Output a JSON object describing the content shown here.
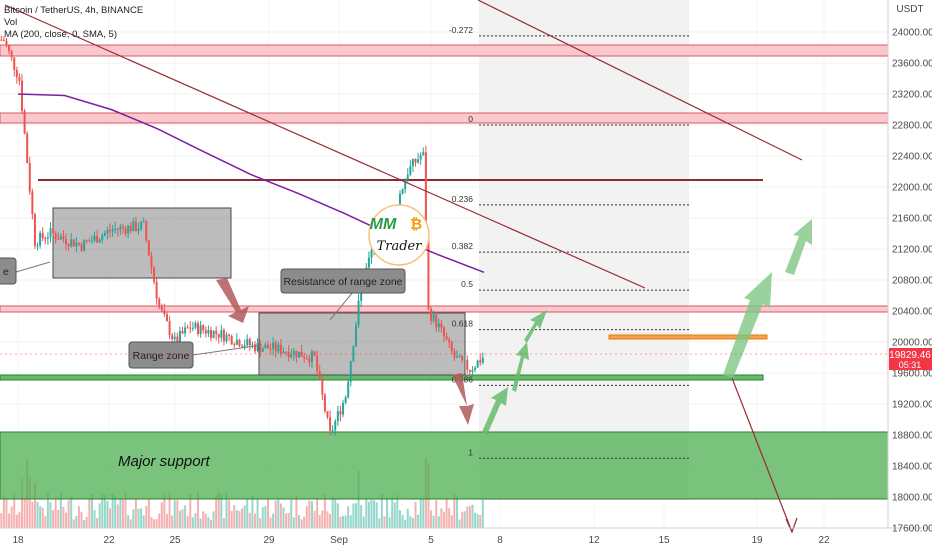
{
  "header": {
    "symbol_line": "Bitcoin / TetherUS, 4h, BINANCE",
    "vol_label": "Vol",
    "ma_label": "MA (200, close, 0, SMA, 5)"
  },
  "price_scale": {
    "currency": "USDT",
    "ticks": [
      "24000.00",
      "23600.00",
      "23200.00",
      "22800.00",
      "22400.00",
      "22000.00",
      "21600.00",
      "21200.00",
      "20800.00",
      "20400.00",
      "20000.00",
      "19600.00",
      "19200.00",
      "18800.00",
      "18400.00",
      "18000.00",
      "17600.00"
    ],
    "last_price": "19829.46",
    "countdown": "05:31",
    "last_price_color": "#f23645"
  },
  "time_scale": {
    "ticks": [
      "18",
      "22",
      "25",
      "29",
      "Sep",
      "5",
      "8",
      "12",
      "15",
      "19",
      "22"
    ]
  },
  "logo": {
    "text_top": "MM",
    "text_top_symbol": "₿",
    "text_bottom": "Trader"
  },
  "annotations": {
    "resistance_label": "Resistance of range zone",
    "range_label": "Range zone",
    "range_label_left_cut": "e",
    "major_support": "Major support"
  },
  "fibonacci": {
    "levels": [
      {
        "label": "-0.272",
        "price": 23950
      },
      {
        "label": "0",
        "price": 22800
      },
      {
        "label": "0.236",
        "price": 21770
      },
      {
        "label": "0.382",
        "price": 21160
      },
      {
        "label": "0.5",
        "price": 20670
      },
      {
        "label": "0.618",
        "price": 20160
      },
      {
        "label": "0.786",
        "price": 19440
      },
      {
        "label": "1",
        "price": 18500
      }
    ]
  },
  "colors": {
    "up": "#26a69a",
    "down": "#ef5350",
    "ma": "#7b1fa2",
    "support_zone": "#4caf50",
    "resistance_band": "#f8c8cc",
    "orange_level": "#f57c00",
    "trendline": "#9c2a35"
  },
  "chart_data": {
    "type": "candlestick",
    "title": "Bitcoin / TetherUS, 4h, BINANCE",
    "timeframe": "4h",
    "ylim": [
      17400,
      24300
    ],
    "x_ticks": [
      "18",
      "22",
      "25",
      "29",
      "Sep",
      "5",
      "8",
      "12",
      "15",
      "19",
      "22"
    ],
    "series": [
      {
        "name": "MA (200, close, 0, SMA, 5)",
        "kind": "line",
        "points": [
          [
            "2022-08-18",
            23200
          ],
          [
            "2022-08-21",
            23180
          ],
          [
            "2022-08-24",
            23000
          ],
          [
            "2022-08-27",
            22750
          ],
          [
            "2022-08-30",
            22450
          ],
          [
            "2022-09-02",
            22160
          ],
          [
            "2022-09-05",
            21920
          ],
          [
            "2022-09-08",
            21660
          ],
          [
            "2022-09-11",
            21380
          ],
          [
            "2022-09-14",
            21130
          ],
          [
            "2022-09-17",
            20900
          ]
        ]
      }
    ],
    "ohlc_path": [
      [
        "2022-08-17",
        23900
      ],
      [
        "2022-08-18",
        23400
      ],
      [
        "2022-08-19",
        21300
      ],
      [
        "2022-08-20",
        21400
      ],
      [
        "2022-08-22",
        21250
      ],
      [
        "2022-08-24",
        21450
      ],
      [
        "2022-08-26",
        21500
      ],
      [
        "2022-08-27",
        20450
      ],
      [
        "2022-08-28",
        20000
      ],
      [
        "2022-08-29",
        20200
      ],
      [
        "2022-08-31",
        20100
      ],
      [
        "2022-09-02",
        19950
      ],
      [
        "2022-09-04",
        19900
      ],
      [
        "2022-09-06",
        19800
      ],
      [
        "2022-09-07",
        18800
      ],
      [
        "2022-09-08",
        19300
      ],
      [
        "2022-09-09",
        20700
      ],
      [
        "2022-09-10",
        21400
      ],
      [
        "2022-09-11",
        21600
      ],
      [
        "2022-09-12",
        22200
      ],
      [
        "2022-09-13",
        22450
      ],
      [
        "2022-09-13T08",
        20400
      ],
      [
        "2022-09-14",
        20200
      ],
      [
        "2022-09-15",
        19800
      ],
      [
        "2022-09-16",
        19650
      ],
      [
        "2022-09-17",
        19830
      ]
    ],
    "zones": [
      {
        "name": "Major support",
        "from": 17950,
        "to": 18800
      },
      {
        "name": "Range zone",
        "from": 19600,
        "to": 20300
      },
      {
        "name": "Resistance of range zone",
        "from": 20400,
        "to": 20480
      }
    ],
    "horizontal_levels": [
      23780,
      22850,
      22080,
      20460,
      20080,
      19570
    ],
    "projections": [
      "bullish breakout to ~21600",
      "bearish breakdown to ~17600"
    ]
  }
}
